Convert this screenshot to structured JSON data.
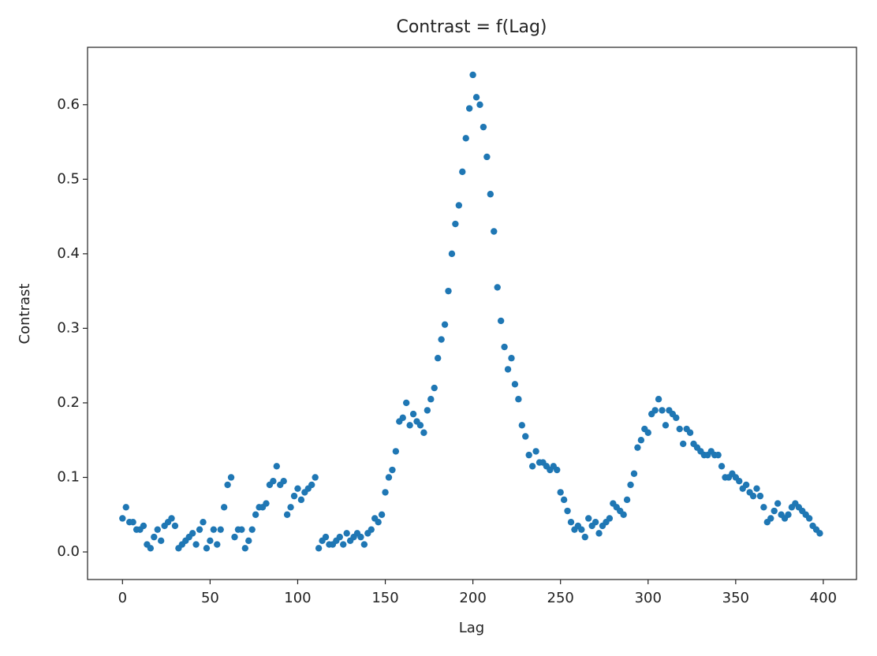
{
  "chart_data": {
    "type": "scatter",
    "title": "Contrast = f(Lag)",
    "x_label": "Lag",
    "y_label": "Contrast",
    "series": [
      {
        "color": "#1f77b4",
        "x": [
          0,
          2,
          4,
          6,
          8,
          10,
          12,
          14,
          16,
          18,
          20,
          22,
          24,
          26,
          28,
          30,
          32,
          34,
          36,
          38,
          40,
          42,
          44,
          46,
          48,
          50,
          52,
          54,
          56,
          58,
          60,
          62,
          64,
          66,
          68,
          70,
          72,
          74,
          76,
          78,
          80,
          82,
          84,
          86,
          88,
          90,
          92,
          94,
          96,
          98,
          100,
          102,
          104,
          106,
          108,
          110,
          112,
          114,
          116,
          118,
          120,
          122,
          124,
          126,
          128,
          130,
          132,
          134,
          136,
          138,
          140,
          142,
          144,
          146,
          148,
          150,
          152,
          154,
          156,
          158,
          160,
          162,
          164,
          166,
          168,
          170,
          172,
          174,
          176,
          178,
          180,
          182,
          184,
          186,
          188,
          190,
          192,
          194,
          196,
          198,
          200,
          202,
          204,
          206,
          208,
          210,
          212,
          214,
          216,
          218,
          220,
          222,
          224,
          226,
          228,
          230,
          232,
          234,
          236,
          238,
          240,
          242,
          244,
          246,
          248,
          250,
          252,
          254,
          256,
          258,
          260,
          262,
          264,
          266,
          268,
          270,
          272,
          274,
          276,
          278,
          280,
          282,
          284,
          286,
          288,
          290,
          292,
          294,
          296,
          298,
          300,
          302,
          304,
          306,
          308,
          310,
          312,
          314,
          316,
          318,
          320,
          322,
          324,
          326,
          328,
          330,
          332,
          334,
          336,
          338,
          340,
          342,
          344,
          346,
          348,
          350,
          352,
          354,
          356,
          358,
          360,
          362,
          364,
          366,
          368,
          370,
          372,
          374,
          376,
          378,
          380,
          382,
          384,
          386,
          388,
          390,
          392,
          394,
          396,
          398
        ],
        "values": [
          0.045,
          0.06,
          0.04,
          0.04,
          0.03,
          0.03,
          0.035,
          0.01,
          0.005,
          0.02,
          0.03,
          0.015,
          0.035,
          0.04,
          0.045,
          0.035,
          0.005,
          0.01,
          0.015,
          0.02,
          0.025,
          0.01,
          0.03,
          0.04,
          0.005,
          0.015,
          0.03,
          0.01,
          0.03,
          0.06,
          0.09,
          0.1,
          0.02,
          0.03,
          0.03,
          0.005,
          0.015,
          0.03,
          0.05,
          0.06,
          0.06,
          0.065,
          0.09,
          0.095,
          0.115,
          0.09,
          0.095,
          0.05,
          0.06,
          0.075,
          0.085,
          0.07,
          0.08,
          0.085,
          0.09,
          0.1,
          0.005,
          0.015,
          0.02,
          0.01,
          0.01,
          0.015,
          0.02,
          0.01,
          0.025,
          0.015,
          0.02,
          0.025,
          0.02,
          0.01,
          0.025,
          0.03,
          0.045,
          0.04,
          0.05,
          0.08,
          0.1,
          0.11,
          0.135,
          0.175,
          0.18,
          0.2,
          0.17,
          0.185,
          0.175,
          0.17,
          0.16,
          0.19,
          0.205,
          0.22,
          0.26,
          0.285,
          0.305,
          0.35,
          0.4,
          0.44,
          0.465,
          0.51,
          0.555,
          0.595,
          0.64,
          0.61,
          0.6,
          0.57,
          0.53,
          0.48,
          0.43,
          0.355,
          0.31,
          0.275,
          0.245,
          0.26,
          0.225,
          0.205,
          0.17,
          0.155,
          0.13,
          0.115,
          0.135,
          0.12,
          0.12,
          0.115,
          0.11,
          0.115,
          0.11,
          0.08,
          0.07,
          0.055,
          0.04,
          0.03,
          0.035,
          0.03,
          0.02,
          0.045,
          0.035,
          0.04,
          0.025,
          0.035,
          0.04,
          0.045,
          0.065,
          0.06,
          0.055,
          0.05,
          0.07,
          0.09,
          0.105,
          0.14,
          0.15,
          0.165,
          0.16,
          0.185,
          0.19,
          0.205,
          0.19,
          0.17,
          0.19,
          0.185,
          0.18,
          0.165,
          0.145,
          0.165,
          0.16,
          0.145,
          0.14,
          0.135,
          0.13,
          0.13,
          0.135,
          0.13,
          0.13,
          0.115,
          0.1,
          0.1,
          0.105,
          0.1,
          0.095,
          0.085,
          0.09,
          0.08,
          0.075,
          0.085,
          0.075,
          0.06,
          0.04,
          0.045,
          0.055,
          0.065,
          0.05,
          0.045,
          0.05,
          0.06,
          0.065,
          0.06,
          0.055,
          0.05,
          0.045,
          0.035,
          0.03,
          0.025
        ]
      }
    ],
    "xlim": [
      -19.95,
      418.95
    ],
    "xticks": [
      0,
      50,
      100,
      150,
      200,
      250,
      300,
      350,
      400
    ],
    "ylim": [
      -0.037,
      0.677
    ],
    "yticks": [
      {
        "value": 0,
        "label": "0.0"
      },
      0.1,
      0.2,
      0.3,
      0.4,
      0.5,
      0.6
    ]
  }
}
